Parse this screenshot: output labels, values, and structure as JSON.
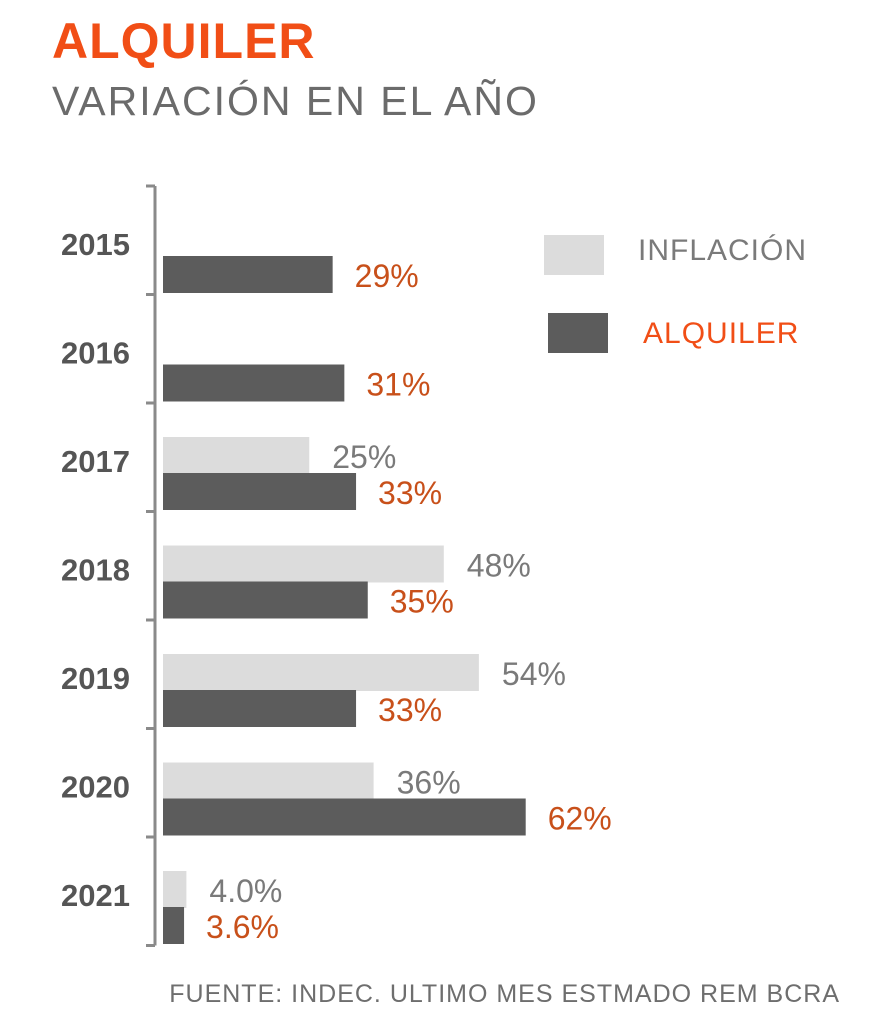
{
  "chart_data": {
    "type": "bar",
    "orientation": "horizontal",
    "title": "ALQUILER",
    "subtitle": "VARIACIÓN EN EL AÑO",
    "categories": [
      "2015",
      "2016",
      "2017",
      "2018",
      "2019",
      "2020",
      "2021"
    ],
    "series": [
      {
        "name": "INFLACIÓN",
        "color": "#dcdcdc",
        "label_color": "#7a7a7a",
        "values": [
          null,
          null,
          25,
          48,
          54,
          36,
          4.0
        ],
        "labels": [
          "",
          "",
          "25%",
          "48%",
          "54%",
          "36%",
          "4.0%"
        ]
      },
      {
        "name": "ALQUILER",
        "color": "#5c5c5c",
        "label_color": "#c8501a",
        "values": [
          29,
          31,
          33,
          35,
          33,
          62,
          3.6
        ],
        "labels": [
          "29%",
          "31%",
          "33%",
          "35%",
          "33%",
          "62%",
          "3.6%"
        ]
      }
    ],
    "legend": {
      "position": "top-right",
      "entries": [
        {
          "label": "INFLACIÓN",
          "color": "#dcdcdc",
          "text_color": "#7a7a7a"
        },
        {
          "label": "ALQUILER",
          "color": "#5c5c5c",
          "text_color": "#f14e16"
        }
      ]
    },
    "grid": false,
    "xlim": [
      0,
      65
    ]
  },
  "source_note": "FUENTE: INDEC. ULTIMO MES ESTMADO REM BCRA"
}
